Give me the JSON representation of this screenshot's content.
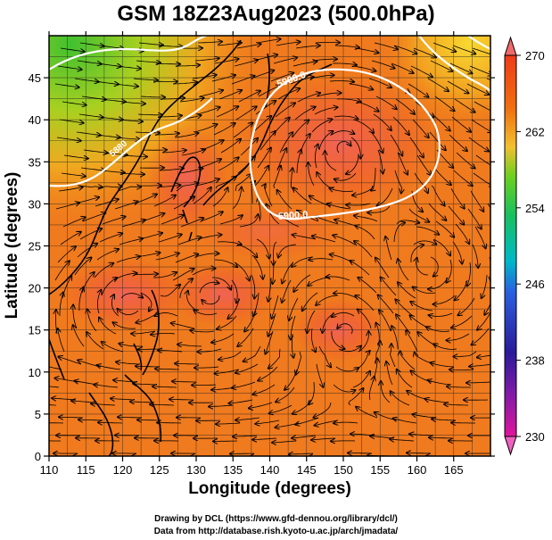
{
  "title": "GSM 18Z23Aug2023 (500.0hPa)",
  "xlabel": "Longitude (degrees)",
  "ylabel": "Latitude  (degrees)",
  "credits": [
    "Drawing by DCL (https://www.gfd-dennou.org/library/dcl/)",
    "Data from http://database.rish.kyoto-u.ac.jp/arch/jmadata/"
  ],
  "chart_data": {
    "type": "heatmap",
    "field": "500 hPa temperature with streamlines and geopotential height contours",
    "xlim": [
      110,
      170
    ],
    "ylim": [
      0,
      50
    ],
    "x_ticks": [
      110,
      115,
      120,
      125,
      130,
      135,
      140,
      145,
      150,
      155,
      160,
      165
    ],
    "y_ticks": [
      0,
      5,
      10,
      15,
      20,
      25,
      30,
      35,
      40,
      45
    ],
    "colorbar": {
      "range": [
        230,
        270
      ],
      "tick_labels": [
        230,
        238,
        246,
        254,
        262,
        270
      ],
      "colors": [
        "#e0149c",
        "#2a1a9a",
        "#2a60e0",
        "#00b8c8",
        "#18c060",
        "#6ad020",
        "#f2c030",
        "#f07010",
        "#ef3a1a"
      ]
    },
    "contours": [
      {
        "label": "5900.0",
        "level": 5900
      },
      {
        "label": "5900.0",
        "level": 5900
      },
      {
        "label": "5880",
        "level": 5880
      }
    ]
  }
}
